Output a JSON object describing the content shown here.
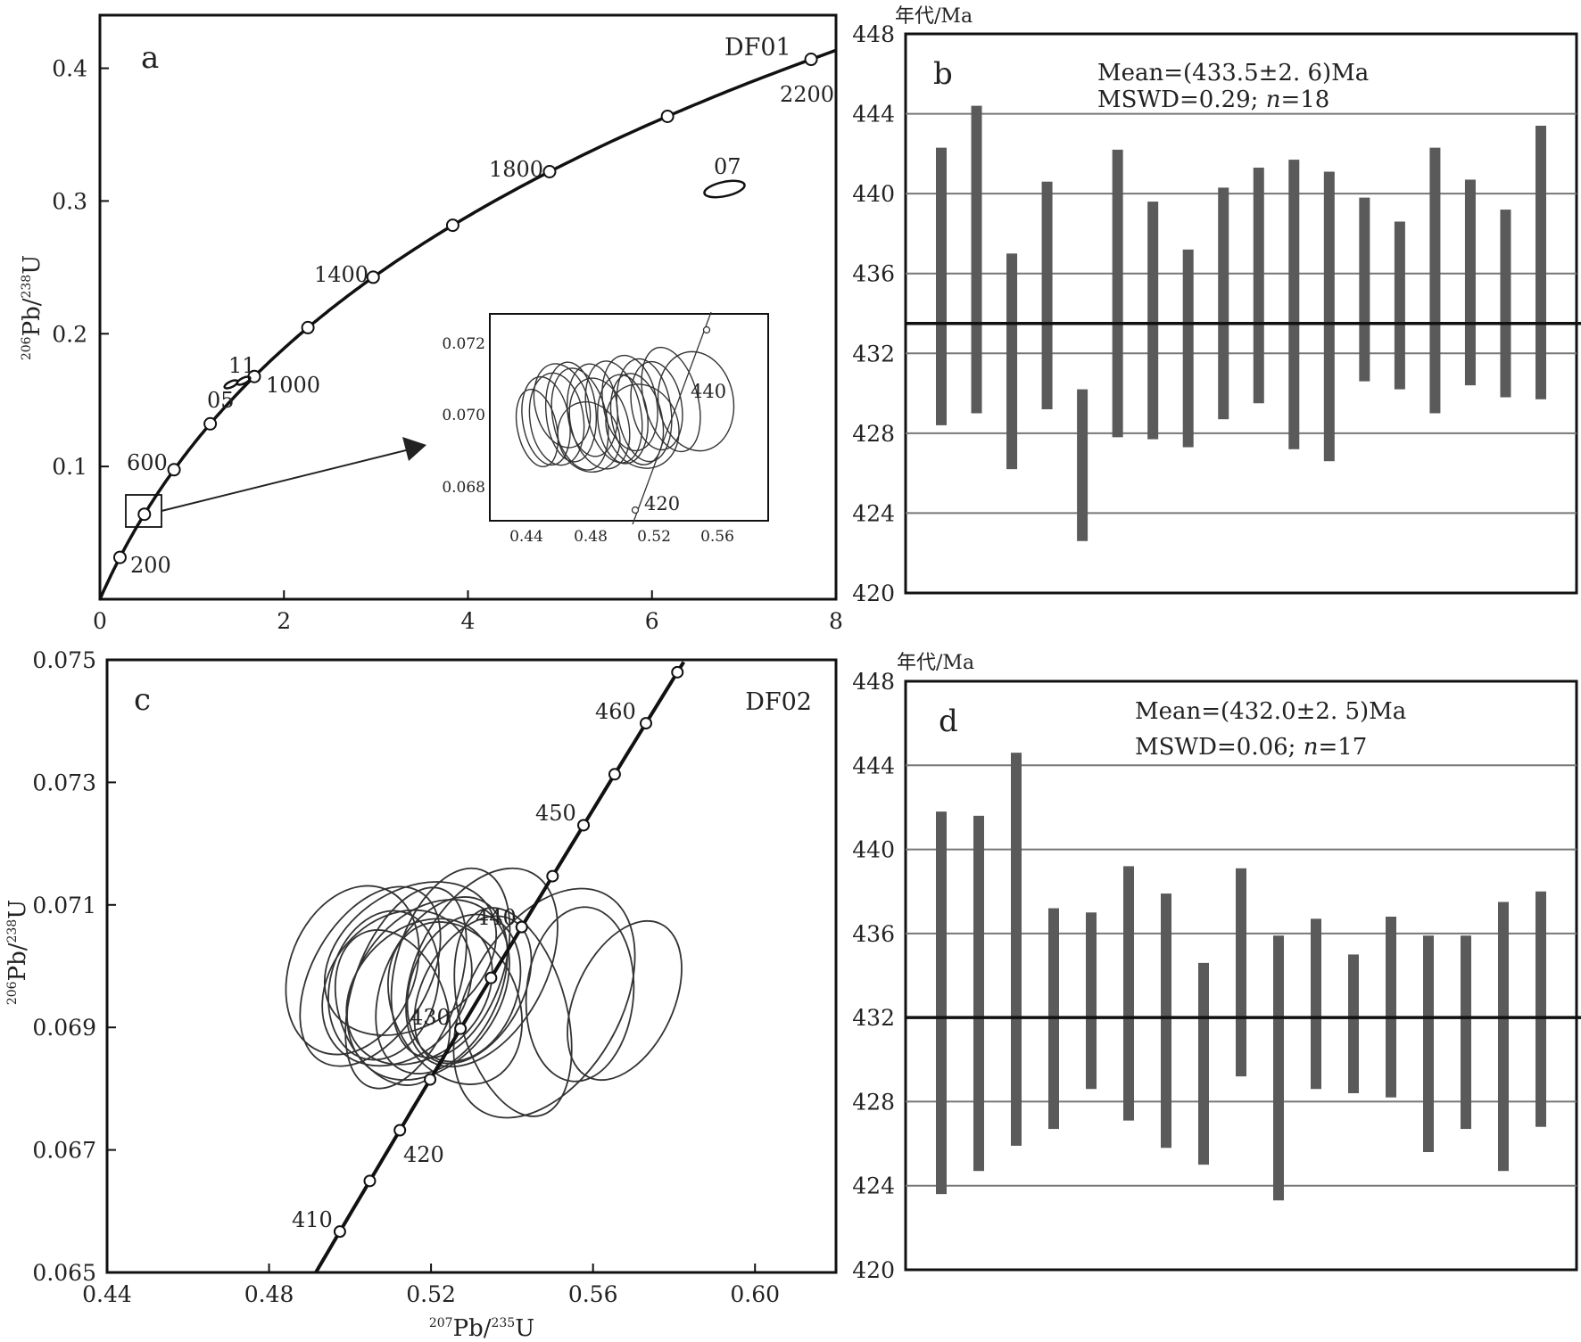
{
  "chart_data": [
    {
      "panel": "a",
      "type": "scatter",
      "subtype": "concordia",
      "sample_label": "DF01",
      "xlabel": "207Pb/235U",
      "ylabel": "206Pb/238U",
      "xlim": [
        0,
        8
      ],
      "ylim": [
        0,
        0.44
      ],
      "x_ticks": [
        "0",
        "2",
        "4",
        "6",
        "8"
      ],
      "y_ticks": [
        "0.1",
        "0.2",
        "0.3",
        "0.4"
      ],
      "age_labels": [
        "200",
        "600",
        "1000",
        "1400",
        "1800",
        "2200"
      ],
      "spot_labels": [
        "11",
        "05",
        "07"
      ],
      "inset": {
        "x_ticks": [
          "0.44",
          "0.48",
          "0.52",
          "0.56"
        ],
        "y_ticks": [
          "0.068",
          "0.070",
          "0.072"
        ],
        "age_labels": [
          "420",
          "440"
        ]
      }
    },
    {
      "panel": "b",
      "type": "bar",
      "subtype": "weighted-mean",
      "unit_label": "年代/Ma",
      "stat_line1": "Mean=(433.5±2. 6)Ma",
      "stat_line2_prefix": "MSWD=0.29; ",
      "stat_line2_n": "n",
      "stat_line2_value": "=18",
      "ylim": [
        420,
        448
      ],
      "y_ticks": [
        "420",
        "424",
        "428",
        "432",
        "436",
        "440",
        "444",
        "448"
      ],
      "mean": 433.5,
      "bars": [
        [
          428.4,
          442.3
        ],
        [
          429.0,
          444.4
        ],
        [
          426.2,
          437.0
        ],
        [
          429.2,
          440.6
        ],
        [
          422.6,
          430.2
        ],
        [
          427.8,
          442.2
        ],
        [
          427.7,
          439.6
        ],
        [
          427.3,
          437.2
        ],
        [
          428.7,
          440.3
        ],
        [
          429.5,
          441.3
        ],
        [
          427.2,
          441.7
        ],
        [
          426.6,
          441.1
        ],
        [
          430.6,
          439.8
        ],
        [
          430.2,
          438.6
        ],
        [
          429.0,
          442.3
        ],
        [
          430.4,
          440.7
        ],
        [
          429.8,
          439.2
        ],
        [
          429.7,
          443.4
        ]
      ]
    },
    {
      "panel": "c",
      "type": "scatter",
      "subtype": "concordia",
      "sample_label": "DF02",
      "xlabel": "207Pb/235U",
      "ylabel": "206Pb/238U",
      "xlim": [
        0.44,
        0.62
      ],
      "ylim": [
        0.065,
        0.075
      ],
      "x_ticks": [
        "0.44",
        "0.48",
        "0.52",
        "0.56",
        "0.60"
      ],
      "y_ticks": [
        "0.065",
        "0.067",
        "0.069",
        "0.071",
        "0.073",
        "0.075"
      ],
      "age_labels": [
        "410",
        "420",
        "430",
        "440",
        "450",
        "460"
      ]
    },
    {
      "panel": "d",
      "type": "bar",
      "subtype": "weighted-mean",
      "unit_label": "年代/Ma",
      "stat_line1": "Mean=(432.0±2. 5)Ma",
      "stat_line2_prefix": "MSWD=0.06; ",
      "stat_line2_n": "n",
      "stat_line2_value": "=17",
      "ylim": [
        420,
        448
      ],
      "y_ticks": [
        "420",
        "424",
        "428",
        "432",
        "436",
        "440",
        "444",
        "448"
      ],
      "mean": 432.0,
      "bars": [
        [
          423.6,
          441.8
        ],
        [
          424.7,
          441.6
        ],
        [
          425.9,
          444.6
        ],
        [
          426.7,
          437.2
        ],
        [
          428.6,
          437.0
        ],
        [
          427.1,
          439.2
        ],
        [
          425.8,
          437.9
        ],
        [
          425.0,
          434.6
        ],
        [
          429.2,
          439.1
        ],
        [
          423.3,
          435.9
        ],
        [
          428.6,
          436.7
        ],
        [
          428.4,
          435.0
        ],
        [
          428.2,
          436.8
        ],
        [
          425.6,
          435.9
        ],
        [
          426.7,
          435.9
        ],
        [
          424.7,
          437.5
        ],
        [
          426.8,
          438.0
        ]
      ]
    }
  ]
}
